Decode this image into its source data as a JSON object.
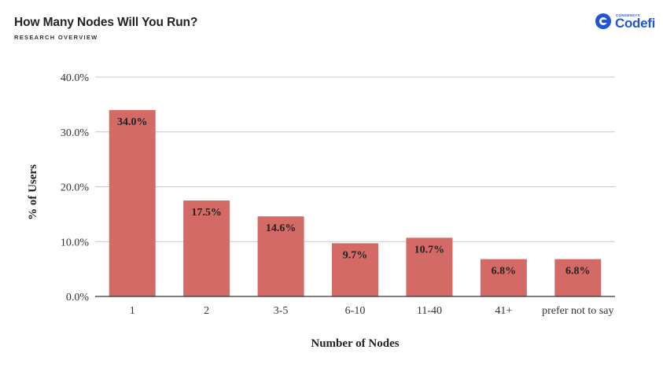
{
  "header": {
    "title": "How Many Nodes Will You Run?",
    "subtitle": "RESEARCH OVERVIEW"
  },
  "logo": {
    "small_text": "CONSENSYS",
    "name": "Codefi",
    "color": "#1f55d6"
  },
  "chart_data": {
    "type": "bar",
    "categories": [
      "1",
      "2",
      "3-5",
      "6-10",
      "11-40",
      "41+",
      "prefer not to say"
    ],
    "values": [
      34.0,
      17.5,
      14.6,
      9.7,
      10.7,
      6.8,
      6.8
    ],
    "data_labels": [
      "34.0%",
      "17.5%",
      "14.6%",
      "9.7%",
      "10.7%",
      "6.8%",
      "6.8%"
    ],
    "xlabel": "Number of Nodes",
    "ylabel": "% of Users",
    "ylim": [
      0,
      40
    ],
    "yticks": [
      0,
      10,
      20,
      30,
      40
    ],
    "ytick_labels": [
      "0.0%",
      "10.0%",
      "20.0%",
      "30.0%",
      "40.0%"
    ],
    "grid": true,
    "bar_color": "#d46a66"
  }
}
